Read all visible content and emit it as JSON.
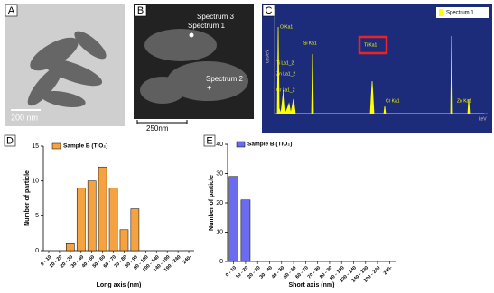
{
  "panels": {
    "a": {
      "label": "A",
      "scale": "200  nm"
    },
    "b": {
      "label": "B",
      "scale": "250nm",
      "spots": [
        "Spectrum 3",
        "Spectrum 1",
        "Spectrum 2"
      ]
    },
    "c": {
      "label": "C",
      "legend": "Spectrum 1",
      "y_label": "cps/eV",
      "x_unit": "keV",
      "peaks": [
        "O Ka1",
        "Ti La1_2",
        "Zn La1_2",
        "Cr La1_2",
        "Si Ka1",
        "Ti Ka1",
        "Cr Ka1",
        "Zn Ka1"
      ]
    },
    "d": {
      "label": "D"
    },
    "e": {
      "label": "E"
    }
  },
  "chart_data": [
    {
      "type": "bar",
      "legend": "Sample B  (TiO₂)",
      "color": "#f5a342",
      "x_label": "Long axis  (nm)",
      "y_label": "Number of particle",
      "categories": [
        "0 - 10",
        "10 - 20",
        "20 - 30",
        "30 - 40",
        "40 - 50",
        "50 - 60",
        "60 - 70",
        "70 - 80",
        "80 - 90",
        "90 - 100",
        "100 - 140",
        "140 - 190",
        "190 - 240",
        "240-"
      ],
      "values": [
        0,
        0,
        1,
        9,
        10,
        12,
        9,
        3,
        6,
        0,
        0,
        0,
        0,
        0
      ],
      "ylim": [
        0,
        15
      ],
      "yticks": [
        0,
        5,
        10,
        15
      ]
    },
    {
      "type": "bar",
      "legend": "Sample B  (TiO₂)",
      "color": "#6b6bf0",
      "x_label": "Short axis  (nm)",
      "y_label": "Number of particle",
      "categories": [
        "0 - 10",
        "10 - 20",
        "20 - 30",
        "30 - 40",
        "40 - 50",
        "50 - 60",
        "60 - 70",
        "70 - 80",
        "80 - 90",
        "90 - 100",
        "100 - 140",
        "140 - 190",
        "190 - 240",
        "240-"
      ],
      "values": [
        29,
        21,
        0,
        0,
        0,
        0,
        0,
        0,
        0,
        0,
        0,
        0,
        0,
        0
      ],
      "ylim": [
        0,
        40
      ],
      "yticks": [
        0,
        10,
        20,
        30,
        40
      ]
    }
  ]
}
